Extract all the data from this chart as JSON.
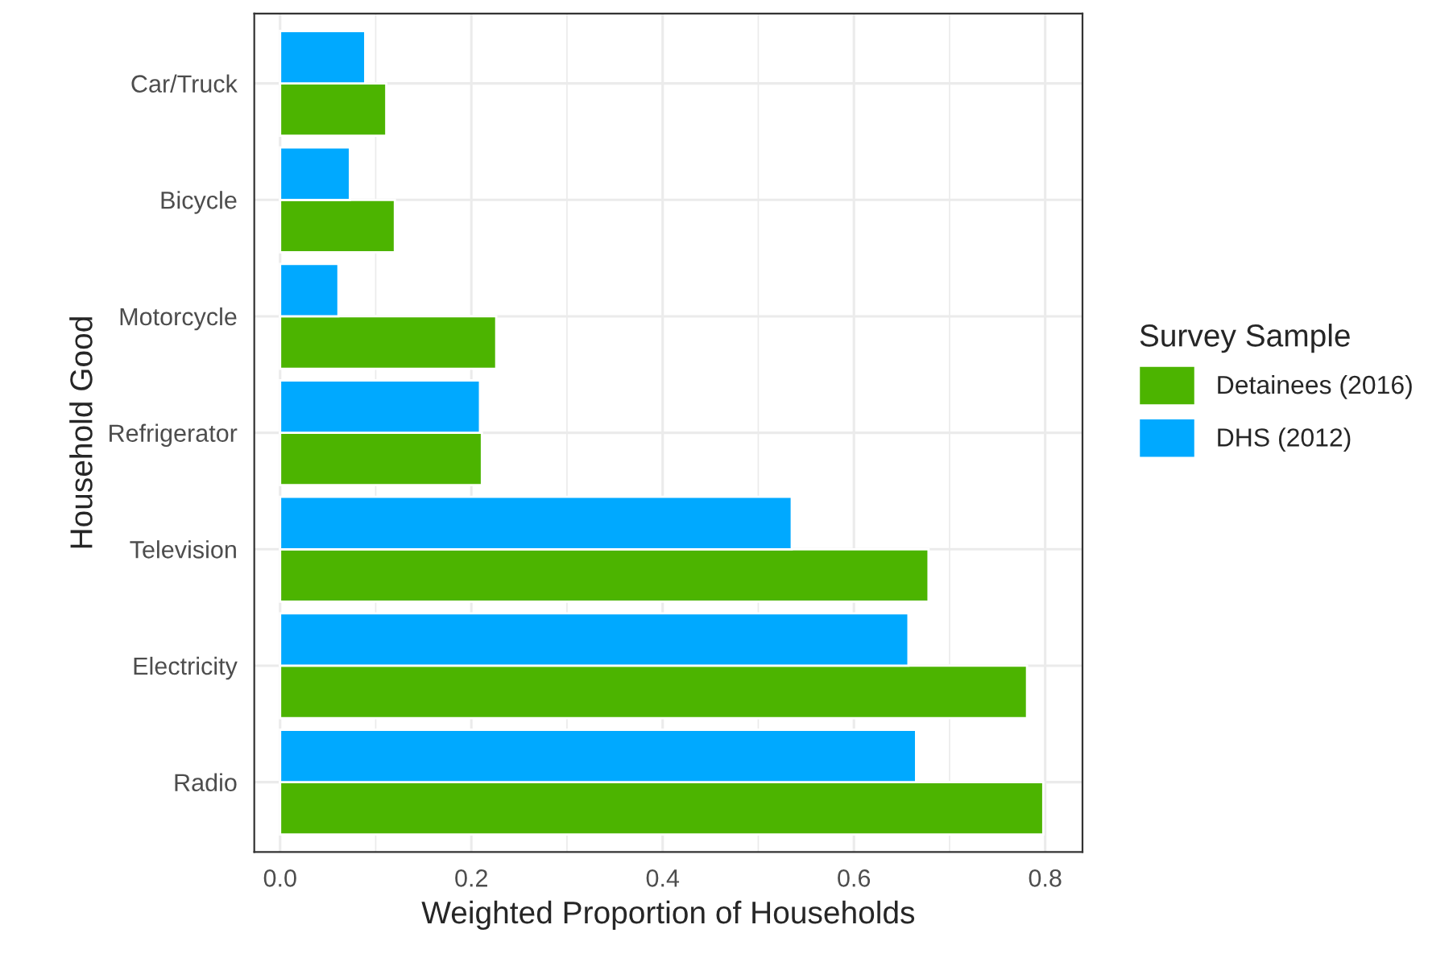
{
  "chart_data": {
    "type": "bar",
    "orientation": "horizontal",
    "categories": [
      "Car/Truck",
      "Bicycle",
      "Motorcycle",
      "Refrigerator",
      "Television",
      "Electricity",
      "Radio"
    ],
    "series": [
      {
        "name": "Detainees (2016)",
        "color": "#4cb400",
        "values": [
          0.111,
          0.12,
          0.226,
          0.211,
          0.678,
          0.781,
          0.798
        ]
      },
      {
        "name": "DHS (2012)",
        "color": "#00a9ff",
        "values": [
          0.089,
          0.073,
          0.061,
          0.209,
          0.535,
          0.657,
          0.665
        ]
      }
    ],
    "xlabel": "Weighted Proportion of Households",
    "ylabel": "Household Good",
    "legend_title": "Survey Sample",
    "xlim": [
      -0.027,
      0.839
    ],
    "xticks": [
      {
        "value": 0,
        "label": "0.0"
      },
      {
        "value": 0.2,
        "label": "0.2"
      },
      {
        "value": 0.4,
        "label": "0.4"
      },
      {
        "value": 0.6,
        "label": "0.6"
      },
      {
        "value": 0.8,
        "label": "0.8"
      }
    ],
    "grid": true,
    "legend": "right"
  }
}
